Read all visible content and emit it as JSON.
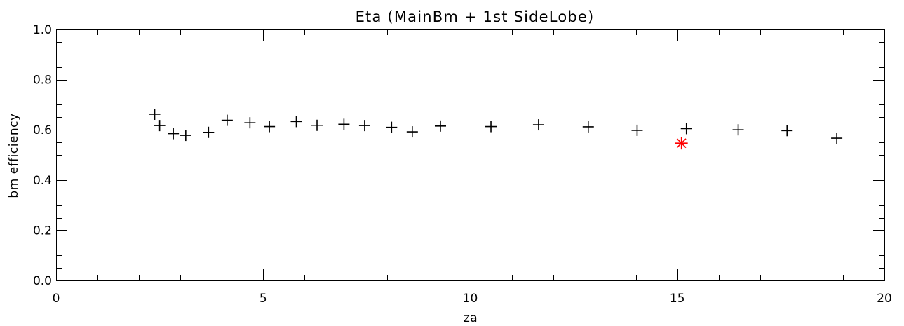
{
  "chart_data": {
    "type": "scatter",
    "title": "Eta (MainBm + 1st SideLobe)",
    "xlabel": "za",
    "ylabel": "bm efficiency",
    "xlim": [
      0,
      20
    ],
    "ylim": [
      0.0,
      1.0
    ],
    "x_ticks": [
      "0",
      "5",
      "10",
      "15",
      "20"
    ],
    "y_ticks": [
      "0.0",
      "0.2",
      "0.4",
      "0.6",
      "0.8",
      "1.0"
    ],
    "grid": false,
    "legend": "none",
    "series": [
      {
        "marker": "plus",
        "color": "#000000",
        "x": [
          2.38,
          2.5,
          2.83,
          3.13,
          3.68,
          4.13,
          4.68,
          5.15,
          5.8,
          6.3,
          6.95,
          7.45,
          8.1,
          8.6,
          9.28,
          10.5,
          11.65,
          12.85,
          14.03,
          15.22,
          16.47,
          17.65,
          18.85
        ],
        "y": [
          0.662,
          0.617,
          0.585,
          0.578,
          0.59,
          0.638,
          0.628,
          0.613,
          0.633,
          0.618,
          0.622,
          0.617,
          0.61,
          0.592,
          0.615,
          0.613,
          0.62,
          0.612,
          0.598,
          0.605,
          0.6,
          0.597,
          0.567
        ]
      },
      {
        "marker": "asterisk",
        "color": "#ff0000",
        "x": [
          15.1
        ],
        "y": [
          0.547
        ]
      }
    ]
  }
}
